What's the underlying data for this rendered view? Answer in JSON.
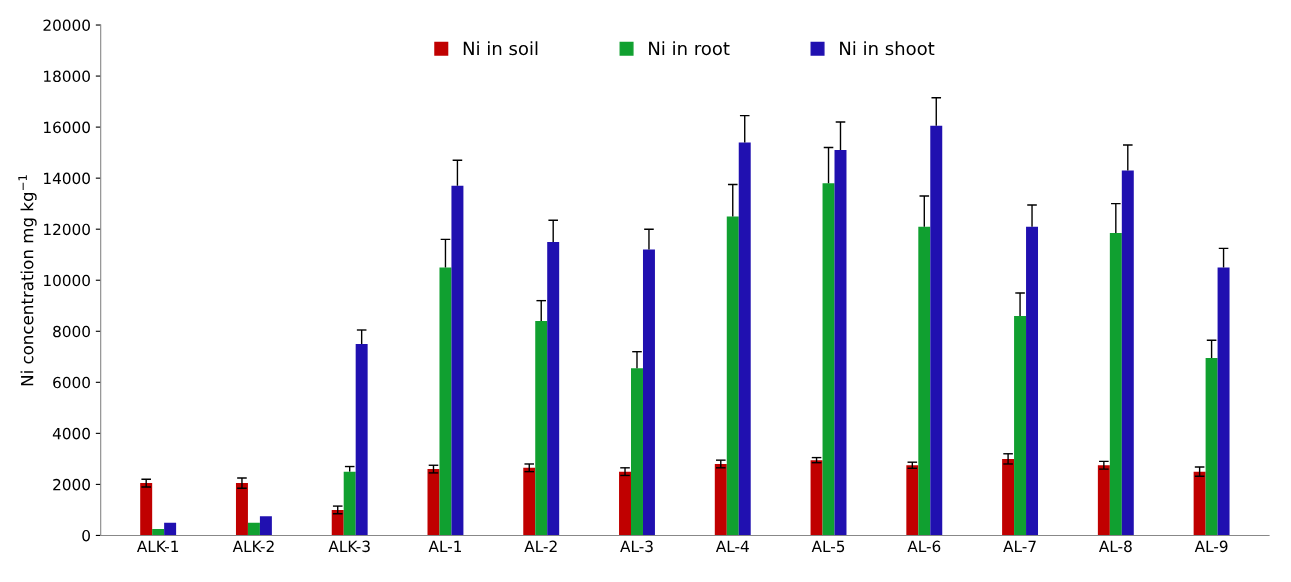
{
  "chart_data": {
    "type": "bar",
    "ylabel": "Ni concentration mg kg$^{−1}$",
    "categories": [
      "ALK-1",
      "ALK-2",
      "ALK-3",
      "AL-1",
      "AL-2",
      "AL-3",
      "AL-4",
      "AL-5",
      "AL-6",
      "AL-7",
      "AL-8",
      "AL-9"
    ],
    "series": [
      {
        "name": "Ni in soil",
        "color": "#c00000",
        "values": [
          2050,
          2050,
          1000,
          2600,
          2650,
          2500,
          2800,
          2950,
          2750,
          3000,
          2750,
          2500
        ],
        "errors": [
          150,
          200,
          150,
          150,
          150,
          150,
          150,
          100,
          120,
          200,
          150,
          180
        ]
      },
      {
        "name": "Ni in root",
        "color": "#10a030",
        "values": [
          250,
          500,
          2500,
          10500,
          8400,
          6550,
          12500,
          13800,
          12100,
          8600,
          11850,
          6950
        ],
        "errors": [
          null,
          null,
          [
            2500,
            2700
          ],
          [
            10500,
            11600
          ],
          [
            8400,
            9200
          ],
          [
            6550,
            7200
          ],
          [
            12500,
            13750
          ],
          [
            13800,
            15200
          ],
          [
            12100,
            13300
          ],
          [
            8600,
            9500
          ],
          [
            11850,
            13000
          ],
          [
            6950,
            7650
          ]
        ]
      },
      {
        "name": "Ni in shoot",
        "color": "#2010b0",
        "values": [
          500,
          750,
          7500,
          13700,
          11500,
          11200,
          15400,
          15100,
          16050,
          12100,
          14300,
          10500
        ],
        "errors": [
          null,
          null,
          [
            7500,
            8050
          ],
          [
            13700,
            14700
          ],
          [
            11500,
            12350
          ],
          [
            11200,
            12000
          ],
          [
            15400,
            16450
          ],
          [
            15100,
            16200
          ],
          [
            16050,
            17150
          ],
          [
            12100,
            12950
          ],
          [
            14300,
            15300
          ],
          [
            10500,
            11250
          ]
        ]
      }
    ],
    "ylim": [
      0,
      20000
    ],
    "yticks": [
      0,
      2000,
      4000,
      6000,
      8000,
      10000,
      12000,
      14000,
      16000,
      18000,
      20000
    ],
    "grid": false,
    "legend": "top"
  }
}
